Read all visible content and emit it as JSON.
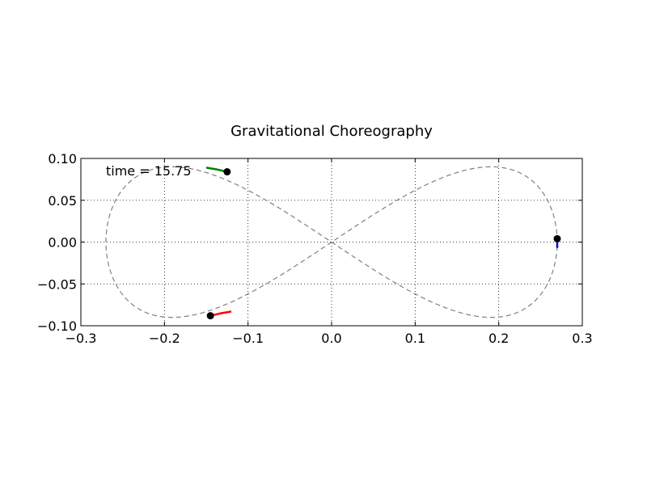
{
  "chart_data": {
    "type": "line",
    "title": "Gravitational Choreography",
    "xlabel": "",
    "ylabel": "",
    "xlim": [
      -0.3,
      0.3
    ],
    "ylim": [
      -0.1,
      0.1
    ],
    "xticks": [
      -0.3,
      -0.2,
      -0.1,
      0.0,
      0.1,
      0.2,
      0.3
    ],
    "xtick_labels": [
      "−0.3",
      "−0.2",
      "−0.1",
      "0.0",
      "0.1",
      "0.2",
      "0.3"
    ],
    "yticks": [
      0.1,
      0.05,
      0.0,
      -0.05,
      -0.1
    ],
    "ytick_labels": [
      "0.10",
      "0.05",
      "0.00",
      "−0.05",
      "−0.10"
    ],
    "grid": true,
    "grid_style": "dotted",
    "annotation": "time = 15.75",
    "orbit": {
      "shape": "figure-eight",
      "x_amplitude": 0.27,
      "y_amplitude": 0.09,
      "color": "#808080",
      "linestyle": "dashed"
    },
    "bodies": [
      {
        "x": -0.125,
        "y": 0.084,
        "trail_color": "#008000",
        "trail": [
          [
            -0.15,
            0.089
          ],
          [
            -0.138,
            0.087
          ],
          [
            -0.125,
            0.084
          ]
        ]
      },
      {
        "x": -0.145,
        "y": -0.088,
        "trail_color": "#ff0000",
        "trail": [
          [
            -0.12,
            -0.083
          ],
          [
            -0.132,
            -0.085
          ],
          [
            -0.145,
            -0.088
          ]
        ]
      },
      {
        "x": 0.27,
        "y": 0.004,
        "trail_color": "#0000ff",
        "trail": [
          [
            0.27,
            -0.007
          ],
          [
            0.27,
            -0.002
          ],
          [
            0.27,
            0.004
          ]
        ]
      }
    ],
    "marker_color": "#000000"
  }
}
